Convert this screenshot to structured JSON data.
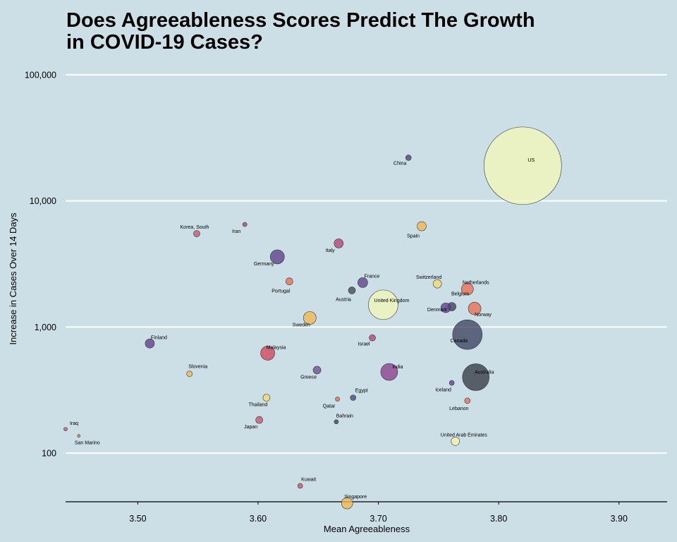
{
  "chart_data": {
    "type": "scatter",
    "title": "Does Agreeableness Scores Predict The Growth\n in COVID-19 Cases?",
    "xlabel": "Mean Agreeableness",
    "ylabel": "Increase in Cases Over 14 Days",
    "xlim": [
      3.44,
      3.94
    ],
    "ylim": [
      40,
      100000
    ],
    "y_scale": "log",
    "x_ticks": [
      "3.50",
      "3.60",
      "3.70",
      "3.80",
      "3.90"
    ],
    "x_tick_values": [
      3.5,
      3.6,
      3.7,
      3.8,
      3.9
    ],
    "y_ticks": [
      "100",
      "1,000",
      "10,000",
      "100,000"
    ],
    "y_tick_values": [
      100,
      1000,
      10000,
      100000
    ],
    "grid": "horizontal",
    "points": [
      {
        "label": "US",
        "x": 3.82,
        "y": 19000,
        "r": 55,
        "color": "#f2f7b8"
      },
      {
        "label": "China",
        "x": 3.725,
        "y": 22000,
        "r": 4,
        "color": "#4a4478"
      },
      {
        "label": "Spain",
        "x": 3.736,
        "y": 6300,
        "r": 6.5,
        "color": "#f2b94e"
      },
      {
        "label": "Iran",
        "x": 3.589,
        "y": 6500,
        "r": 3,
        "color": "#b04470"
      },
      {
        "label": "Korea, South",
        "x": 3.549,
        "y": 5500,
        "r": 4.5,
        "color": "#c6566e"
      },
      {
        "label": "Italy",
        "x": 3.667,
        "y": 4600,
        "r": 6.5,
        "color": "#b04470"
      },
      {
        "label": "Germany",
        "x": 3.616,
        "y": 3600,
        "r": 10,
        "color": "#5e3f88"
      },
      {
        "label": "Portugal",
        "x": 3.626,
        "y": 2300,
        "r": 5,
        "color": "#e86e52"
      },
      {
        "label": "France",
        "x": 3.687,
        "y": 2250,
        "r": 7,
        "color": "#5e3f88"
      },
      {
        "label": "Austria",
        "x": 3.678,
        "y": 1950,
        "r": 5,
        "color": "#444855"
      },
      {
        "label": "Switzerland",
        "x": 3.749,
        "y": 2200,
        "r": 6,
        "color": "#f5d86a"
      },
      {
        "label": "Netherlands",
        "x": 3.774,
        "y": 2000,
        "r": 8.5,
        "color": "#e86e52"
      },
      {
        "label": "United Kingdom",
        "x": 3.704,
        "y": 1500,
        "r": 21,
        "color": "#f2f7b8"
      },
      {
        "label": "Belgium",
        "x": 3.761,
        "y": 1450,
        "r": 6,
        "color": "#3e3f5e"
      },
      {
        "label": "Denmark",
        "x": 3.756,
        "y": 1420,
        "r": 7,
        "color": "#5e3f88"
      },
      {
        "label": "Norway",
        "x": 3.78,
        "y": 1400,
        "r": 9,
        "color": "#e86e52"
      },
      {
        "label": "Sweden",
        "x": 3.643,
        "y": 1180,
        "r": 9,
        "color": "#f2b94e"
      },
      {
        "label": "Canada",
        "x": 3.774,
        "y": 870,
        "r": 21,
        "color": "#3e4260"
      },
      {
        "label": "Israel",
        "x": 3.695,
        "y": 820,
        "r": 4.5,
        "color": "#b04470"
      },
      {
        "label": "Finland",
        "x": 3.51,
        "y": 740,
        "r": 6.5,
        "color": "#5e3f88"
      },
      {
        "label": "Malaysia",
        "x": 3.608,
        "y": 620,
        "r": 10,
        "color": "#d1445a"
      },
      {
        "label": "Slovenia",
        "x": 3.543,
        "y": 425,
        "r": 4,
        "color": "#f2b94e"
      },
      {
        "label": "Greece",
        "x": 3.649,
        "y": 455,
        "r": 5.5,
        "color": "#6e4a90"
      },
      {
        "label": "India",
        "x": 3.709,
        "y": 440,
        "r": 12,
        "color": "#8a3e8c"
      },
      {
        "label": "Australia",
        "x": 3.781,
        "y": 400,
        "r": 19,
        "color": "#343a44"
      },
      {
        "label": "Iceland",
        "x": 3.761,
        "y": 360,
        "r": 3.5,
        "color": "#5e3f88"
      },
      {
        "label": "Egypt",
        "x": 3.679,
        "y": 275,
        "r": 4,
        "color": "#4a4478"
      },
      {
        "label": "Qatar",
        "x": 3.666,
        "y": 268,
        "r": 3,
        "color": "#e86e52"
      },
      {
        "label": "Thailand",
        "x": 3.607,
        "y": 275,
        "r": 5,
        "color": "#f5d86a"
      },
      {
        "label": "Lebanon",
        "x": 3.774,
        "y": 260,
        "r": 4,
        "color": "#e86e52"
      },
      {
        "label": "Japan",
        "x": 3.601,
        "y": 183,
        "r": 5,
        "color": "#c6566e"
      },
      {
        "label": "Bahrain",
        "x": 3.665,
        "y": 177,
        "r": 3,
        "color": "#3e3f5e"
      },
      {
        "label": "Iraq",
        "x": 3.44,
        "y": 155,
        "r": 2.5,
        "color": "#c6566e"
      },
      {
        "label": "San Marino",
        "x": 3.451,
        "y": 137,
        "r": 2,
        "color": "#e86e52"
      },
      {
        "label": "United Arab Emirates",
        "x": 3.764,
        "y": 124,
        "r": 6,
        "color": "#f5f2a8"
      },
      {
        "label": "Kuwait",
        "x": 3.635,
        "y": 55,
        "r": 3.5,
        "color": "#c6566e"
      },
      {
        "label": "Singapore",
        "x": 3.674,
        "y": 40,
        "r": 8,
        "color": "#f2b94e"
      }
    ]
  }
}
